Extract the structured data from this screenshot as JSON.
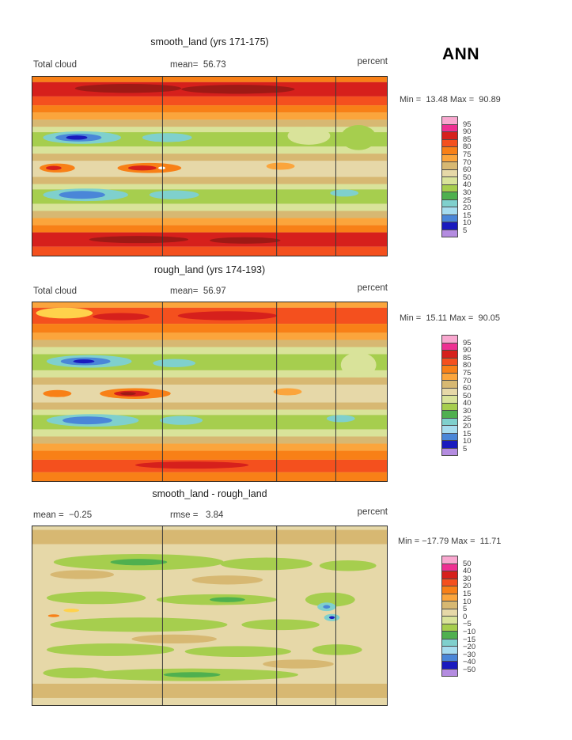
{
  "header": {
    "title": "ANN"
  },
  "panels": [
    {
      "title": "smooth_land (yrs 171-175)",
      "left_label": "Total cloud",
      "center_label": "mean=  56.73",
      "unit_label": "percent",
      "stats_label": "Min =  13.48 Max =  90.89",
      "colorbar": {
        "labels": [
          "95",
          "90",
          "85",
          "80",
          "75",
          "70",
          "60",
          "50",
          "40",
          "30",
          "25",
          "20",
          "15",
          "10",
          "5"
        ],
        "colors": [
          "#f9a7cf",
          "#ee2f92",
          "#d6201c",
          "#f4501e",
          "#f88017",
          "#fba53c",
          "#d7b872",
          "#e6d8a8",
          "#d9e39a",
          "#a6ce4e",
          "#4fb04f",
          "#7fd0cd",
          "#a6dcef",
          "#4a86d8",
          "#1a1abe",
          "#b48ce0"
        ]
      },
      "map": {
        "dividers": [
          36.7,
          68.9,
          85.6
        ],
        "bands": [
          [
            0,
            3,
            "#f88017"
          ],
          [
            3,
            11,
            "#d6201c"
          ],
          [
            11,
            16,
            "#f4501e"
          ],
          [
            16,
            20,
            "#f88017"
          ],
          [
            20,
            24,
            "#fba53c"
          ],
          [
            24,
            28,
            "#d7b872"
          ],
          [
            28,
            31,
            "#d9e39a"
          ],
          [
            31,
            39,
            "#a6ce4e"
          ],
          [
            39,
            43,
            "#d9e39a"
          ],
          [
            43,
            47,
            "#d7b872"
          ],
          [
            47,
            56,
            "#e6d8a8"
          ],
          [
            56,
            60,
            "#d7b872"
          ],
          [
            60,
            63,
            "#d9e39a"
          ],
          [
            63,
            71,
            "#a6ce4e"
          ],
          [
            71,
            75,
            "#d9e39a"
          ],
          [
            75,
            79,
            "#d7b872"
          ],
          [
            79,
            83,
            "#fba53c"
          ],
          [
            83,
            87,
            "#f88017"
          ],
          [
            87,
            95,
            "#d6201c"
          ],
          [
            95,
            100,
            "#f4501e"
          ]
        ],
        "blobs": [
          [
            27,
            6.5,
            15,
            2.5,
            "#9e1a15"
          ],
          [
            58,
            7,
            16,
            2.5,
            "#9e1a15"
          ],
          [
            14,
            34,
            11,
            3.5,
            "#7fd0cd"
          ],
          [
            13,
            34,
            6.5,
            2.2,
            "#4a86d8"
          ],
          [
            12.5,
            34,
            3,
            1.2,
            "#1a1abe"
          ],
          [
            38,
            34,
            7,
            2.5,
            "#7fd0cd"
          ],
          [
            78,
            33,
            6,
            5,
            "#d9e39a"
          ],
          [
            92,
            34,
            5,
            7,
            "#a6ce4e"
          ],
          [
            7,
            51,
            5,
            2.5,
            "#f88017"
          ],
          [
            6,
            51,
            2.2,
            1.2,
            "#d6201c"
          ],
          [
            33,
            51,
            9,
            2.8,
            "#f88017"
          ],
          [
            31,
            51,
            4,
            1.4,
            "#d6201c"
          ],
          [
            36.5,
            51,
            1,
            0.8,
            "#ffffff"
          ],
          [
            70,
            50,
            4,
            2,
            "#fba53c"
          ],
          [
            15,
            66,
            12,
            3.5,
            "#7fd0cd"
          ],
          [
            14,
            66,
            6.5,
            2.2,
            "#4a86d8"
          ],
          [
            40,
            66,
            7,
            2.5,
            "#7fd0cd"
          ],
          [
            88,
            65,
            4,
            2,
            "#7fd0cd"
          ],
          [
            30,
            91,
            14,
            2,
            "#9e1a15"
          ],
          [
            60,
            91.5,
            10,
            1.8,
            "#9e1a15"
          ]
        ]
      }
    },
    {
      "title": "rough_land (yrs 174-193)",
      "left_label": "Total cloud",
      "center_label": "mean=  56.97",
      "unit_label": "percent",
      "stats_label": "Min =  15.11 Max =  90.05",
      "colorbar": {
        "labels": [
          "95",
          "90",
          "85",
          "80",
          "75",
          "70",
          "60",
          "50",
          "40",
          "30",
          "25",
          "20",
          "15",
          "10",
          "5"
        ],
        "colors": [
          "#f9a7cf",
          "#ee2f92",
          "#d6201c",
          "#f4501e",
          "#f88017",
          "#fba53c",
          "#d7b872",
          "#e6d8a8",
          "#d9e39a",
          "#a6ce4e",
          "#4fb04f",
          "#7fd0cd",
          "#a6dcef",
          "#4a86d8",
          "#1a1abe",
          "#b48ce0"
        ]
      },
      "map": {
        "dividers": [
          36.7,
          68.9,
          85.6
        ],
        "bands": [
          [
            0,
            3,
            "#fba53c"
          ],
          [
            3,
            12,
            "#f4501e"
          ],
          [
            12,
            17,
            "#f88017"
          ],
          [
            17,
            21,
            "#fba53c"
          ],
          [
            21,
            25,
            "#d7b872"
          ],
          [
            25,
            29,
            "#d9e39a"
          ],
          [
            29,
            38,
            "#a6ce4e"
          ],
          [
            38,
            42,
            "#d9e39a"
          ],
          [
            42,
            46,
            "#d7b872"
          ],
          [
            46,
            56,
            "#e6d8a8"
          ],
          [
            56,
            60,
            "#d7b872"
          ],
          [
            60,
            63,
            "#d9e39a"
          ],
          [
            63,
            71,
            "#a6ce4e"
          ],
          [
            71,
            75,
            "#d9e39a"
          ],
          [
            75,
            79,
            "#d7b872"
          ],
          [
            79,
            83,
            "#fba53c"
          ],
          [
            83,
            88,
            "#f88017"
          ],
          [
            88,
            95,
            "#f4501e"
          ],
          [
            95,
            100,
            "#f88017"
          ]
        ],
        "blobs": [
          [
            9,
            6,
            8,
            3,
            "#ffd24b"
          ],
          [
            25,
            8,
            8,
            2,
            "#d6201c"
          ],
          [
            55,
            7.5,
            14,
            2.5,
            "#d6201c"
          ],
          [
            16,
            33,
            12,
            3.5,
            "#7fd0cd"
          ],
          [
            15,
            33,
            7,
            2.2,
            "#4a86d8"
          ],
          [
            14.5,
            33,
            3,
            1.1,
            "#1a1abe"
          ],
          [
            40,
            34,
            6,
            2.3,
            "#7fd0cd"
          ],
          [
            92,
            35,
            5,
            7,
            "#d9e39a"
          ],
          [
            7,
            51,
            4,
            2,
            "#f88017"
          ],
          [
            29,
            51,
            10,
            3,
            "#f88017"
          ],
          [
            28,
            51,
            5,
            1.6,
            "#d6201c"
          ],
          [
            27,
            51,
            2.2,
            0.9,
            "#9e1a15"
          ],
          [
            72,
            50,
            4,
            2,
            "#fba53c"
          ],
          [
            17,
            66,
            13,
            3.5,
            "#7fd0cd"
          ],
          [
            15.5,
            66,
            7,
            2.2,
            "#4a86d8"
          ],
          [
            42,
            66,
            6,
            2.5,
            "#7fd0cd"
          ],
          [
            87,
            65,
            4,
            2,
            "#7fd0cd"
          ],
          [
            45,
            91,
            16,
            2,
            "#d6201c"
          ]
        ]
      }
    },
    {
      "title": "smooth_land - rough_land",
      "left_label": "mean =  −0.25",
      "center_label": "rmse =   3.84",
      "unit_label": "percent",
      "stats_label": "Min = −17.79 Max =  11.71",
      "colorbar": {
        "labels": [
          "50",
          "40",
          "30",
          "20",
          "15",
          "10",
          "5",
          "0",
          "−5",
          "−10",
          "−15",
          "−20",
          "−30",
          "−40",
          "−50"
        ],
        "colors": [
          "#f9a7cf",
          "#ee2f92",
          "#d6201c",
          "#f4501e",
          "#f88017",
          "#fba53c",
          "#d7b872",
          "#e6d8a8",
          "#d9e39a",
          "#a6ce4e",
          "#4fb04f",
          "#7fd0cd",
          "#a6dcef",
          "#4a86d8",
          "#1a1abe",
          "#b48ce0"
        ]
      },
      "map": {
        "dividers": [
          36.7,
          68.9,
          85.6
        ],
        "bands": [
          [
            0,
            2,
            "#e6d8a8"
          ],
          [
            2,
            10,
            "#d7b872"
          ],
          [
            10,
            88,
            "#e6d8a8"
          ],
          [
            88,
            96,
            "#d7b872"
          ],
          [
            96,
            100,
            "#e6d8a8"
          ]
        ],
        "blobs": [
          [
            30,
            20,
            24,
            4.5,
            "#a6ce4e"
          ],
          [
            30,
            20,
            8,
            1.8,
            "#4fb04f"
          ],
          [
            66,
            21,
            13,
            3.5,
            "#a6ce4e"
          ],
          [
            89,
            22,
            8,
            3,
            "#a6ce4e"
          ],
          [
            14,
            27,
            9,
            2.5,
            "#d7b872"
          ],
          [
            55,
            30,
            10,
            2.5,
            "#d7b872"
          ],
          [
            18,
            40,
            14,
            3.5,
            "#a6ce4e"
          ],
          [
            52,
            41,
            17,
            3,
            "#a6ce4e"
          ],
          [
            55,
            41,
            5,
            1.4,
            "#4fb04f"
          ],
          [
            84,
            41,
            7,
            4,
            "#a6ce4e"
          ],
          [
            11,
            47,
            2.2,
            1,
            "#ffd24b"
          ],
          [
            6,
            50,
            1.6,
            0.8,
            "#f88017"
          ],
          [
            83,
            45,
            2.6,
            2.4,
            "#7fd0cd"
          ],
          [
            83,
            45,
            1,
            1,
            "#4a86d8"
          ],
          [
            84.5,
            51,
            2.2,
            2,
            "#7fd0cd"
          ],
          [
            84.5,
            51,
            0.8,
            0.8,
            "#1a1abe"
          ],
          [
            30,
            55,
            25,
            4,
            "#a6ce4e"
          ],
          [
            70,
            55,
            11,
            3,
            "#a6ce4e"
          ],
          [
            40,
            63,
            12,
            2.5,
            "#d7b872"
          ],
          [
            22,
            69,
            18,
            3.5,
            "#a6ce4e"
          ],
          [
            58,
            70,
            15,
            3,
            "#a6ce4e"
          ],
          [
            86,
            69,
            7,
            3,
            "#a6ce4e"
          ],
          [
            75,
            77,
            10,
            2.5,
            "#d7b872"
          ],
          [
            12,
            82,
            9,
            3,
            "#a6ce4e"
          ],
          [
            45,
            83,
            30,
            3.5,
            "#a6ce4e"
          ],
          [
            45,
            83,
            8,
            1.5,
            "#4fb04f"
          ]
        ]
      }
    }
  ],
  "chart_data": [
    {
      "type": "heatmap",
      "title": "smooth_land (yrs 171-175)",
      "variable": "Total cloud",
      "units": "percent",
      "season": "ANN",
      "mean": 56.73,
      "min": 13.48,
      "max": 90.89,
      "contour_levels": [
        5,
        10,
        15,
        20,
        25,
        30,
        40,
        50,
        60,
        70,
        75,
        80,
        85,
        90,
        95
      ],
      "palette": [
        "#b48ce0",
        "#1a1abe",
        "#4a86d8",
        "#a6dcef",
        "#7fd0cd",
        "#4fb04f",
        "#a6ce4e",
        "#d9e39a",
        "#e6d8a8",
        "#d7b872",
        "#fba53c",
        "#f88017",
        "#f4501e",
        "#d6201c",
        "#ee2f92",
        "#f9a7cf"
      ],
      "legend_position": "right"
    },
    {
      "type": "heatmap",
      "title": "rough_land (yrs 174-193)",
      "variable": "Total cloud",
      "units": "percent",
      "season": "ANN",
      "mean": 56.97,
      "min": 15.11,
      "max": 90.05,
      "contour_levels": [
        5,
        10,
        15,
        20,
        25,
        30,
        40,
        50,
        60,
        70,
        75,
        80,
        85,
        90,
        95
      ],
      "palette": [
        "#b48ce0",
        "#1a1abe",
        "#4a86d8",
        "#a6dcef",
        "#7fd0cd",
        "#4fb04f",
        "#a6ce4e",
        "#d9e39a",
        "#e6d8a8",
        "#d7b872",
        "#fba53c",
        "#f88017",
        "#f4501e",
        "#d6201c",
        "#ee2f92",
        "#f9a7cf"
      ],
      "legend_position": "right"
    },
    {
      "type": "heatmap",
      "title": "smooth_land - rough_land",
      "units": "percent",
      "season": "ANN",
      "mean": -0.25,
      "rmse": 3.84,
      "min": -17.79,
      "max": 11.71,
      "contour_levels": [
        -50,
        -40,
        -30,
        -20,
        -15,
        -10,
        -5,
        0,
        5,
        10,
        15,
        20,
        30,
        40,
        50
      ],
      "palette": [
        "#b48ce0",
        "#1a1abe",
        "#4a86d8",
        "#a6dcef",
        "#7fd0cd",
        "#4fb04f",
        "#a6ce4e",
        "#d9e39a",
        "#e6d8a8",
        "#d7b872",
        "#fba53c",
        "#f88017",
        "#f4501e",
        "#d6201c",
        "#ee2f92",
        "#f9a7cf"
      ],
      "legend_position": "right"
    }
  ]
}
